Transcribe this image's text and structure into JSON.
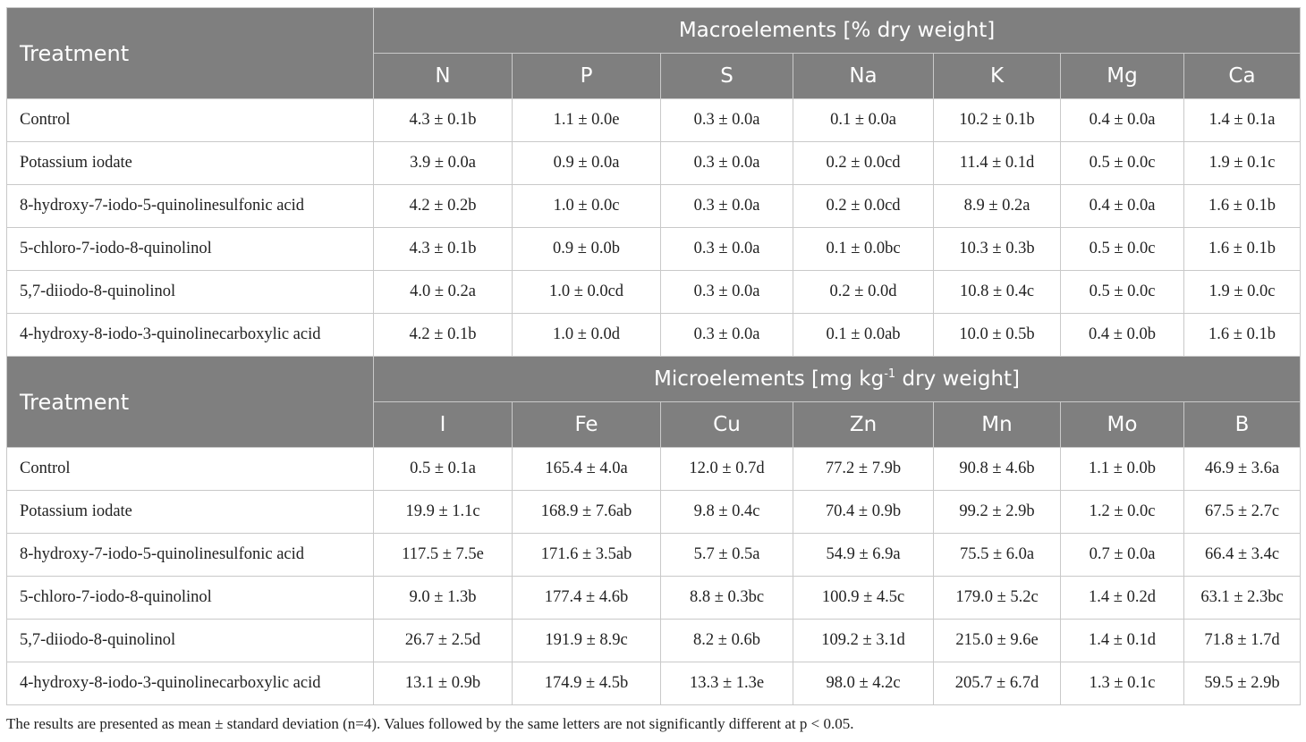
{
  "macro": {
    "treatment_label": "Treatment",
    "group_title": "Macroelements [% dry weight]",
    "columns": [
      "N",
      "P",
      "S",
      "Na",
      "K",
      "Mg",
      "Ca"
    ],
    "rows": [
      {
        "treatment": "Control",
        "values": [
          "4.3 ± 0.1b",
          "1.1 ± 0.0e",
          "0.3 ± 0.0a",
          "0.1 ± 0.0a",
          "10.2 ± 0.1b",
          "0.4 ± 0.0a",
          "1.4 ± 0.1a"
        ]
      },
      {
        "treatment": "Potassium iodate",
        "values": [
          "3.9 ± 0.0a",
          "0.9 ± 0.0a",
          "0.3 ± 0.0a",
          "0.2 ± 0.0cd",
          "11.4 ± 0.1d",
          "0.5 ± 0.0c",
          "1.9 ± 0.1c"
        ]
      },
      {
        "treatment": "8-hydroxy-7-iodo-5-quinolinesulfonic acid",
        "values": [
          "4.2 ± 0.2b",
          "1.0 ± 0.0c",
          "0.3 ± 0.0a",
          "0.2 ± 0.0cd",
          "8.9 ± 0.2a",
          "0.4 ± 0.0a",
          "1.6 ± 0.1b"
        ]
      },
      {
        "treatment": "5-chloro-7-iodo-8-quinolinol",
        "values": [
          "4.3 ± 0.1b",
          "0.9 ± 0.0b",
          "0.3 ± 0.0a",
          "0.1 ± 0.0bc",
          "10.3 ± 0.3b",
          "0.5 ± 0.0c",
          "1.6 ± 0.1b"
        ]
      },
      {
        "treatment": "5,7-diiodo-8-quinolinol",
        "values": [
          "4.0 ± 0.2a",
          "1.0 ± 0.0cd",
          "0.3 ± 0.0a",
          "0.2 ± 0.0d",
          "10.8 ± 0.4c",
          "0.5 ± 0.0c",
          "1.9 ± 0.0c"
        ]
      },
      {
        "treatment": "4-hydroxy-8-iodo-3-quinolinecarboxylic acid",
        "values": [
          "4.2 ± 0.1b",
          "1.0 ± 0.0d",
          "0.3 ± 0.0a",
          "0.1 ± 0.0ab",
          "10.0 ± 0.5b",
          "0.4 ± 0.0b",
          "1.6 ± 0.1b"
        ]
      }
    ]
  },
  "micro": {
    "treatment_label": "Treatment",
    "group_title_before": "Microelements [mg kg",
    "group_title_sup": "-1",
    "group_title_after": " dry weight]",
    "columns": [
      "I",
      "Fe",
      "Cu",
      "Zn",
      "Mn",
      "Mo",
      "B"
    ],
    "rows": [
      {
        "treatment": "Control",
        "values": [
          "0.5 ± 0.1a",
          "165.4 ± 4.0a",
          "12.0 ± 0.7d",
          "77.2 ± 7.9b",
          "90.8 ± 4.6b",
          "1.1 ± 0.0b",
          "46.9 ± 3.6a"
        ]
      },
      {
        "treatment": "Potassium iodate",
        "values": [
          "19.9 ± 1.1c",
          "168.9 ± 7.6ab",
          "9.8 ± 0.4c",
          "70.4 ± 0.9b",
          "99.2 ± 2.9b",
          "1.2 ± 0.0c",
          "67.5 ± 2.7c"
        ]
      },
      {
        "treatment": "8-hydroxy-7-iodo-5-quinolinesulfonic acid",
        "values": [
          "117.5 ± 7.5e",
          "171.6 ± 3.5ab",
          "5.7 ± 0.5a",
          "54.9 ± 6.9a",
          "75.5 ± 6.0a",
          "0.7 ± 0.0a",
          "66.4 ± 3.4c"
        ]
      },
      {
        "treatment": "5-chloro-7-iodo-8-quinolinol",
        "values": [
          "9.0 ± 1.3b",
          "177.4 ± 4.6b",
          "8.8 ± 0.3bc",
          "100.9 ± 4.5c",
          "179.0 ± 5.2c",
          "1.4 ± 0.2d",
          "63.1 ± 2.3bc"
        ]
      },
      {
        "treatment": "5,7-diiodo-8-quinolinol",
        "values": [
          "26.7 ± 2.5d",
          "191.9 ± 8.9c",
          "8.2 ± 0.6b",
          "109.2 ± 3.1d",
          "215.0 ± 9.6e",
          "1.4 ± 0.1d",
          "71.8 ± 1.7d"
        ]
      },
      {
        "treatment": "4-hydroxy-8-iodo-3-quinolinecarboxylic acid",
        "values": [
          "13.1 ± 0.9b",
          "174.9 ± 4.5b",
          "13.3 ± 1.3e",
          "98.0 ± 4.2c",
          "205.7 ± 6.7d",
          "1.3 ± 0.1c",
          "59.5 ± 2.9b"
        ]
      }
    ]
  },
  "footnote": "The results are presented as mean ± standard deviation (n=4). Values followed by the same letters are not significantly different at p < 0.05."
}
